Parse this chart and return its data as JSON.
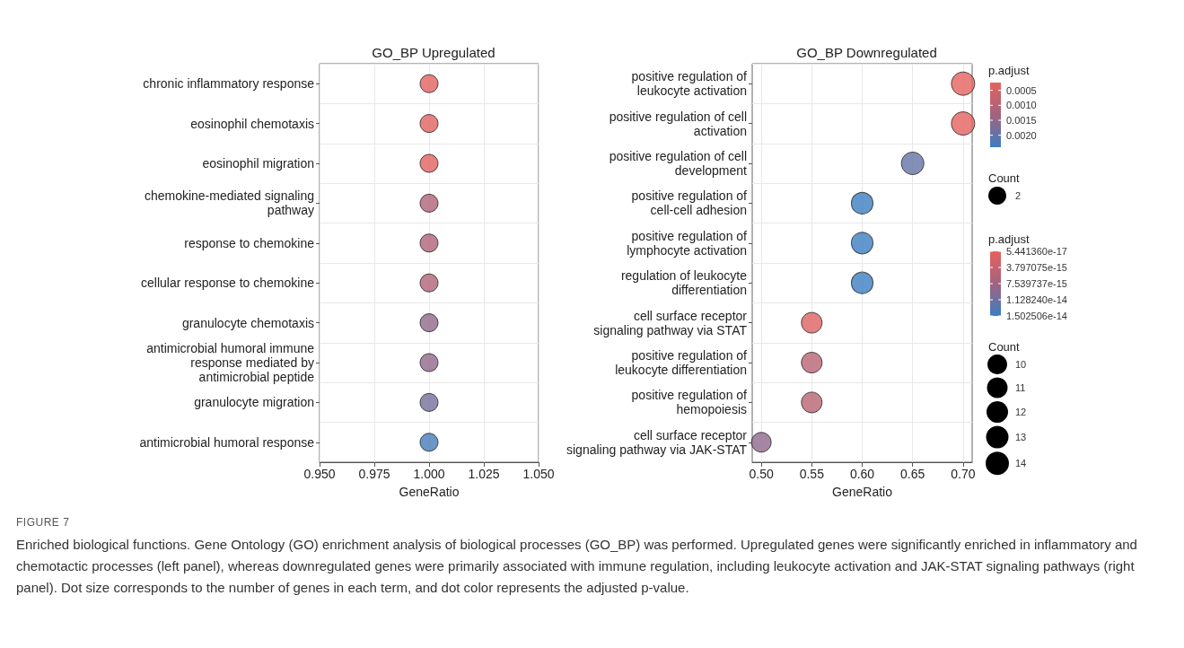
{
  "chart_data": [
    {
      "type": "bubble",
      "title": "GO_BP Upregulated",
      "xlabel": "GeneRatio",
      "orientation": "horizontal",
      "marker": "circle",
      "grid": true,
      "clabel": "p.adjust",
      "legend_title": "Count",
      "categories": [
        "chronic inflammatory response",
        "eosinophil chemotaxis",
        "eosinophil migration",
        "chemokine-mediated signaling pathway",
        "response to chemokine",
        "cellular response to chemokine",
        "granulocyte chemotaxis",
        "antimicrobial humoral immune response mediated by antimicrobial peptide",
        "granulocyte migration",
        "antimicrobial humoral response"
      ],
      "values": [
        1.0,
        1.0,
        1.0,
        1.0,
        1.0,
        1.0,
        1.0,
        1.0,
        1.0,
        1.0
      ],
      "sizes": [
        2,
        2,
        2,
        2,
        2,
        2,
        2,
        2,
        2,
        2
      ],
      "size_legend": [
        2
      ],
      "cvalues": [
        0.0003,
        0.0003,
        0.0003,
        0.0011,
        0.0011,
        0.0011,
        0.0015,
        0.0015,
        0.0018,
        0.0023
      ],
      "clim": [
        0.00024,
        0.0024
      ],
      "cticks": [
        {
          "value": 0.0005,
          "label": "0.0005"
        },
        {
          "value": 0.001,
          "label": "0.0010"
        },
        {
          "value": 0.0015,
          "label": "0.0015"
        },
        {
          "value": 0.002,
          "label": "0.0020"
        }
      ],
      "xlim": [
        0.95,
        1.05
      ],
      "xticks": [
        {
          "value": 0.95,
          "label": "0.950"
        },
        {
          "value": 0.975,
          "label": "0.975"
        },
        {
          "value": 1.0,
          "label": "1.000"
        },
        {
          "value": 1.025,
          "label": "1.025"
        },
        {
          "value": 1.05,
          "label": "1.050"
        }
      ],
      "annotations": [
        "FIGURE 7",
        "Enriched biological functions. Gene Ontology (GO) enrichment analysis of biological processes (GO_BP) was performed. Upregulated genes were significantly enriched in inflammatory and chemotactic processes (left panel), whereas downregulated genes were primarily associated with immune regulation, including leukocyte activation and JAK-STAT signaling pathways (right panel). Dot size corresponds to the number of genes in each term, and dot color represents the adjusted p-value."
      ]
    },
    {
      "type": "bubble",
      "title": "GO_BP Downregulated",
      "xlabel": "GeneRatio",
      "orientation": "horizontal",
      "marker": "circle",
      "grid": true,
      "clabel": "p.adjust",
      "legend_title": "Count",
      "categories": [
        "positive regulation of leukocyte activation",
        "positive regulation of cell activation",
        "positive regulation of cell development",
        "positive regulation of cell-cell adhesion",
        "positive regulation of lymphocyte activation",
        "regulation of leukocyte differentiation",
        "cell surface receptor signaling pathway via STAT",
        "positive regulation of leukocyte differentiation",
        "positive regulation of hemopoiesis",
        "cell surface receptor signaling pathway via JAK-STAT"
      ],
      "values": [
        0.7,
        0.7,
        0.65,
        0.6,
        0.6,
        0.6,
        0.55,
        0.55,
        0.55,
        0.5
      ],
      "sizes": [
        14,
        14,
        13,
        12,
        12,
        12,
        11,
        11,
        11,
        10
      ],
      "size_legend": [
        10,
        11,
        12,
        13,
        14
      ],
      "cvalues": [
        5.44136e-17,
        5.44136e-17,
        1.2e-14,
        1.5e-14,
        1.5e-14,
        1.5e-14,
        1e-15,
        5e-15,
        5e-15,
        9e-15
      ],
      "clim": [
        5.44136e-17,
        1.502506e-14
      ],
      "cticks": [
        {
          "value": 5.44136e-17,
          "label": "5.441360e-17"
        },
        {
          "value": 3.797075e-15,
          "label": "3.797075e-15"
        },
        {
          "value": 7.539737e-15,
          "label": "7.539737e-15"
        },
        {
          "value": 1.12824e-14,
          "label": "1.128240e-14"
        },
        {
          "value": 1.502506e-14,
          "label": "1.502506e-14"
        }
      ],
      "xlim": [
        0.491,
        0.709
      ],
      "xticks": [
        {
          "value": 0.5,
          "label": "0.50"
        },
        {
          "value": 0.55,
          "label": "0.55"
        },
        {
          "value": 0.6,
          "label": "0.60"
        },
        {
          "value": 0.65,
          "label": "0.65"
        },
        {
          "value": 0.7,
          "label": "0.70"
        }
      ]
    }
  ]
}
